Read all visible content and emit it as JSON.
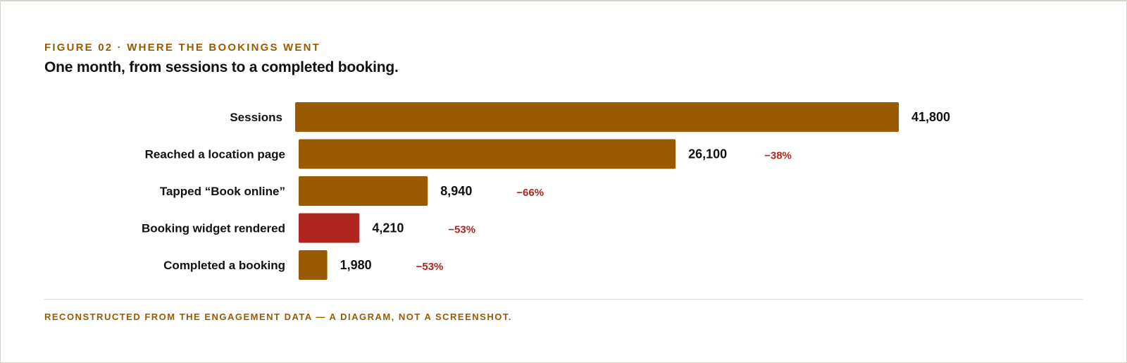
{
  "header": {
    "eyebrow": "FIGURE 02 · WHERE THE BOOKINGS WENT",
    "title": "One month, from sessions to a completed booking."
  },
  "footnote": "RECONSTRUCTED FROM THE ENGAGEMENT DATA — A DIAGRAM, NOT A SCREENSHOT.",
  "colors": {
    "bar": "#9a5a00",
    "highlight": "#b0251f",
    "drop": "#b0251f",
    "label": "#111111"
  },
  "chart_data": {
    "type": "bar",
    "orientation": "horizontal",
    "categories": [
      "Sessions",
      "Reached a location page",
      "Tapped “Book online”",
      "Booking widget rendered",
      "Completed a booking"
    ],
    "values": [
      41800,
      26100,
      8940,
      4210,
      1980
    ],
    "value_labels": [
      "41,800",
      "26,100",
      "8,940",
      "4,210",
      "1,980"
    ],
    "drop_labels": [
      "",
      "−38%",
      "−66%",
      "−53%",
      "−53%"
    ],
    "highlight_index": 3,
    "title": "",
    "xlabel": "",
    "ylabel": "",
    "xlim": [
      0,
      41800
    ],
    "grid": false,
    "legend": "none"
  }
}
